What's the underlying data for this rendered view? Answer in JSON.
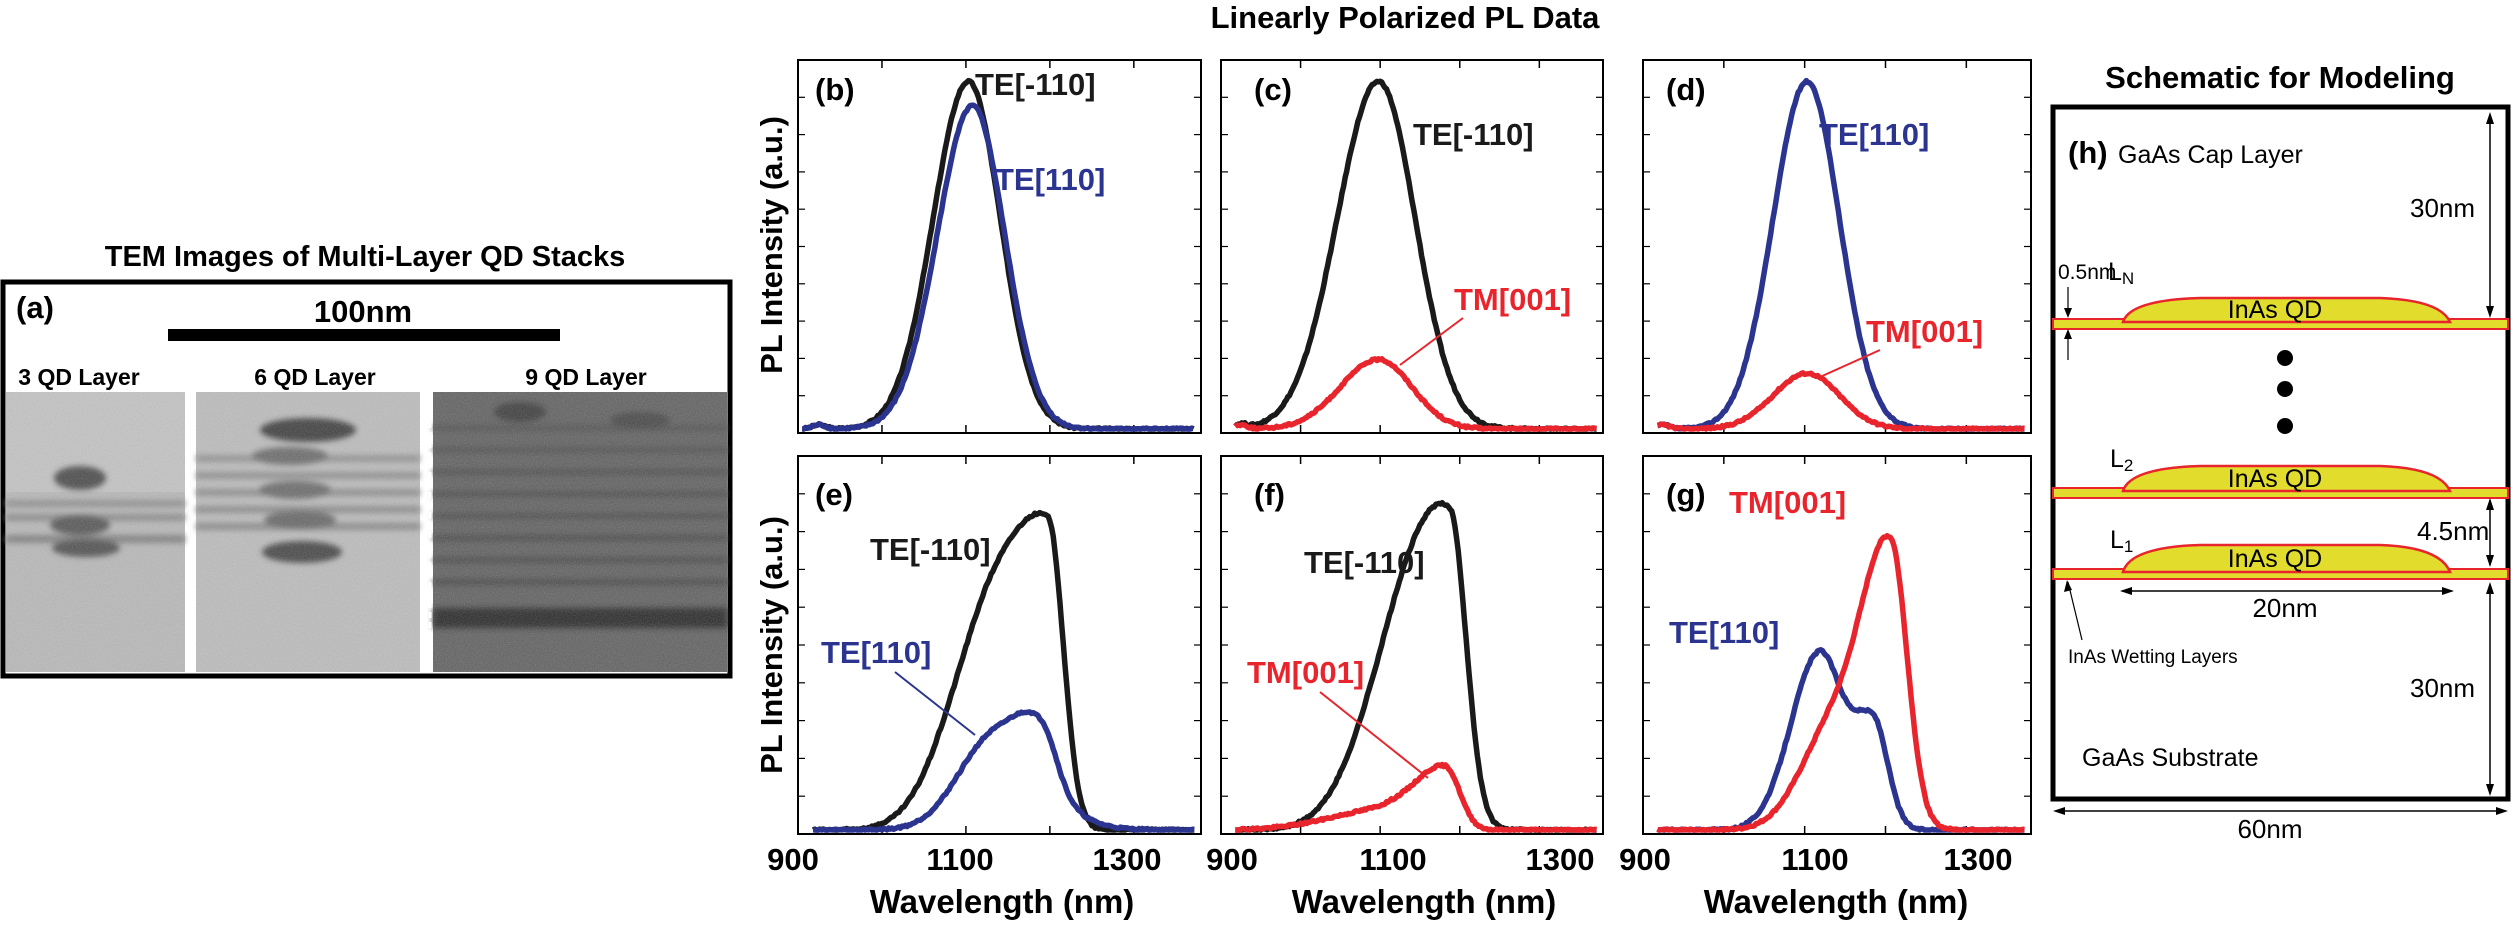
{
  "tem": {
    "title": "TEM Images of Multi-Layer QD Stacks",
    "panel_label": "(a)",
    "scale_bar_label": "100nm",
    "images": [
      {
        "label": "3 QD Layer"
      },
      {
        "label": "6 QD Layer"
      },
      {
        "label": "9 QD Layer"
      }
    ]
  },
  "pl": {
    "title": "Linearly Polarized PL Data",
    "ylabel": "PL Intensity (a.u.)",
    "xlabel": "Wavelength (nm)",
    "xticks": [
      "900",
      "1100",
      "1300"
    ],
    "colors": {
      "te_m110": "#1a1a1a",
      "te_110": "#2b3590",
      "tm_001": "#e8242c"
    }
  },
  "chart_data": [
    {
      "type": "line",
      "panel": "(b)",
      "xlim": [
        900,
        1380
      ],
      "ylim": [
        0,
        1.05
      ],
      "series": [
        {
          "name": "TE[-110]",
          "color": "#1a1a1a",
          "peaks": [
            {
              "x": 1103,
              "amp": 1.0,
              "sl": 42,
              "sr": 38
            }
          ]
        },
        {
          "name": "TE[110]",
          "color": "#2b3590",
          "peaks": [
            {
              "x": 1108,
              "amp": 0.93,
              "sl": 42,
              "sr": 38
            }
          ]
        }
      ]
    },
    {
      "type": "line",
      "panel": "(c)",
      "xlim": [
        900,
        1380
      ],
      "ylim": [
        0,
        1.05
      ],
      "series": [
        {
          "name": "TE[-110]",
          "color": "#1a1a1a",
          "peaks": [
            {
              "x": 1098,
              "amp": 1.0,
              "sl": 52,
              "sr": 46
            }
          ]
        },
        {
          "name": "TM[001]",
          "color": "#e8242c",
          "peaks": [
            {
              "x": 1098,
              "amp": 0.2,
              "sl": 48,
              "sr": 42
            }
          ]
        }
      ]
    },
    {
      "type": "line",
      "panel": "(d)",
      "xlim": [
        900,
        1380
      ],
      "ylim": [
        0,
        1.05
      ],
      "series": [
        {
          "name": "TE[110]",
          "color": "#2b3590",
          "peaks": [
            {
              "x": 1103,
              "amp": 1.0,
              "sl": 42,
              "sr": 40
            }
          ]
        },
        {
          "name": "TM[001]",
          "color": "#e8242c",
          "peaks": [
            {
              "x": 1103,
              "amp": 0.16,
              "sl": 42,
              "sr": 40
            }
          ]
        }
      ]
    },
    {
      "type": "line",
      "panel": "(e)",
      "xlim": [
        900,
        1380
      ],
      "ylim": [
        0,
        1.05
      ],
      "series": [
        {
          "name": "TE[-110]",
          "color": "#1a1a1a",
          "peaks": [
            {
              "x": 1113,
              "amp": 0.36,
              "sl": 46,
              "sr": 40
            },
            {
              "x": 1198,
              "amp": 0.85,
              "sl": 55,
              "sr": 18
            }
          ]
        },
        {
          "name": "TE[110]",
          "color": "#2b3590",
          "peaks": [
            {
              "x": 1133,
              "amp": 0.26,
              "sl": 42,
              "sr": 55
            },
            {
              "x": 1190,
              "amp": 0.16,
              "sl": 30,
              "sr": 18
            }
          ]
        }
      ]
    },
    {
      "type": "line",
      "panel": "(f)",
      "xlim": [
        900,
        1380
      ],
      "ylim": [
        0,
        1.05
      ],
      "series": [
        {
          "name": "TE[-110]",
          "color": "#1a1a1a",
          "peaks": [
            {
              "x": 1113,
              "amp": 0.25,
              "sl": 50,
              "sr": 45
            },
            {
              "x": 1188,
              "amp": 0.85,
              "sl": 58,
              "sr": 20
            }
          ]
        },
        {
          "name": "TM[001]",
          "color": "#e8242c",
          "peaks": [
            {
              "x": 1110,
              "amp": 0.06,
              "sl": 70,
              "sr": 40
            },
            {
              "x": 1182,
              "amp": 0.17,
              "sl": 35,
              "sr": 18
            }
          ]
        }
      ]
    },
    {
      "type": "line",
      "panel": "(g)",
      "xlim": [
        900,
        1380
      ],
      "ylim": [
        0,
        1.05
      ],
      "series": [
        {
          "name": "TE[110]",
          "color": "#2b3590",
          "peaks": [
            {
              "x": 1118,
              "amp": 0.5,
              "sl": 35,
              "sr": 28
            },
            {
              "x": 1185,
              "amp": 0.3,
              "sl": 25,
              "sr": 18
            }
          ]
        },
        {
          "name": "TM[001]",
          "color": "#e8242c",
          "peaks": [
            {
              "x": 1135,
              "amp": 0.28,
              "sl": 40,
              "sr": 45
            },
            {
              "x": 1207,
              "amp": 0.75,
              "sl": 35,
              "sr": 20
            }
          ]
        }
      ]
    }
  ],
  "panels": [
    {
      "label": "(b)",
      "annotations": [
        {
          "text": "TE[-110]",
          "color": "#1a1a1a"
        },
        {
          "text": "TE[110]",
          "color": "#2b3590"
        }
      ]
    },
    {
      "label": "(c)",
      "annotations": [
        {
          "text": "TE[-110]",
          "color": "#1a1a1a"
        },
        {
          "text": "TM[001]",
          "color": "#e8242c"
        }
      ]
    },
    {
      "label": "(d)",
      "annotations": [
        {
          "text": "TE[110]",
          "color": "#2b3590"
        },
        {
          "text": "TM[001]",
          "color": "#e8242c"
        }
      ]
    },
    {
      "label": "(e)",
      "annotations": [
        {
          "text": "TE[-110]",
          "color": "#1a1a1a"
        },
        {
          "text": "TE[110]",
          "color": "#2b3590"
        }
      ]
    },
    {
      "label": "(f)",
      "annotations": [
        {
          "text": "TE[-110]",
          "color": "#1a1a1a"
        },
        {
          "text": "TM[001]",
          "color": "#e8242c"
        }
      ]
    },
    {
      "label": "(g)",
      "annotations": [
        {
          "text": "TM[001]",
          "color": "#e8242c"
        },
        {
          "text": "TE[110]",
          "color": "#2b3590"
        }
      ]
    }
  ],
  "schematic": {
    "title": "Schematic for Modeling",
    "panel_label": "(h)",
    "cap_layer": "GaAs Cap Layer",
    "substrate": "GaAs Substrate",
    "top_thickness": "30nm",
    "bottom_thickness": "30nm",
    "spacer": "4.5nm",
    "wetting_thickness": "0.5nm",
    "qd_width": "20nm",
    "width": "60nm",
    "qd_label": "InAs QD",
    "layer_names": {
      "n_base": "L",
      "n_sub": "N",
      "two_base": "L",
      "two_sub": "2",
      "one_base": "L",
      "one_sub": "1"
    },
    "wetting_label": "InAs Wetting Layers",
    "qd_color": "#e2dc2c",
    "layer_color": "#e8242c"
  }
}
